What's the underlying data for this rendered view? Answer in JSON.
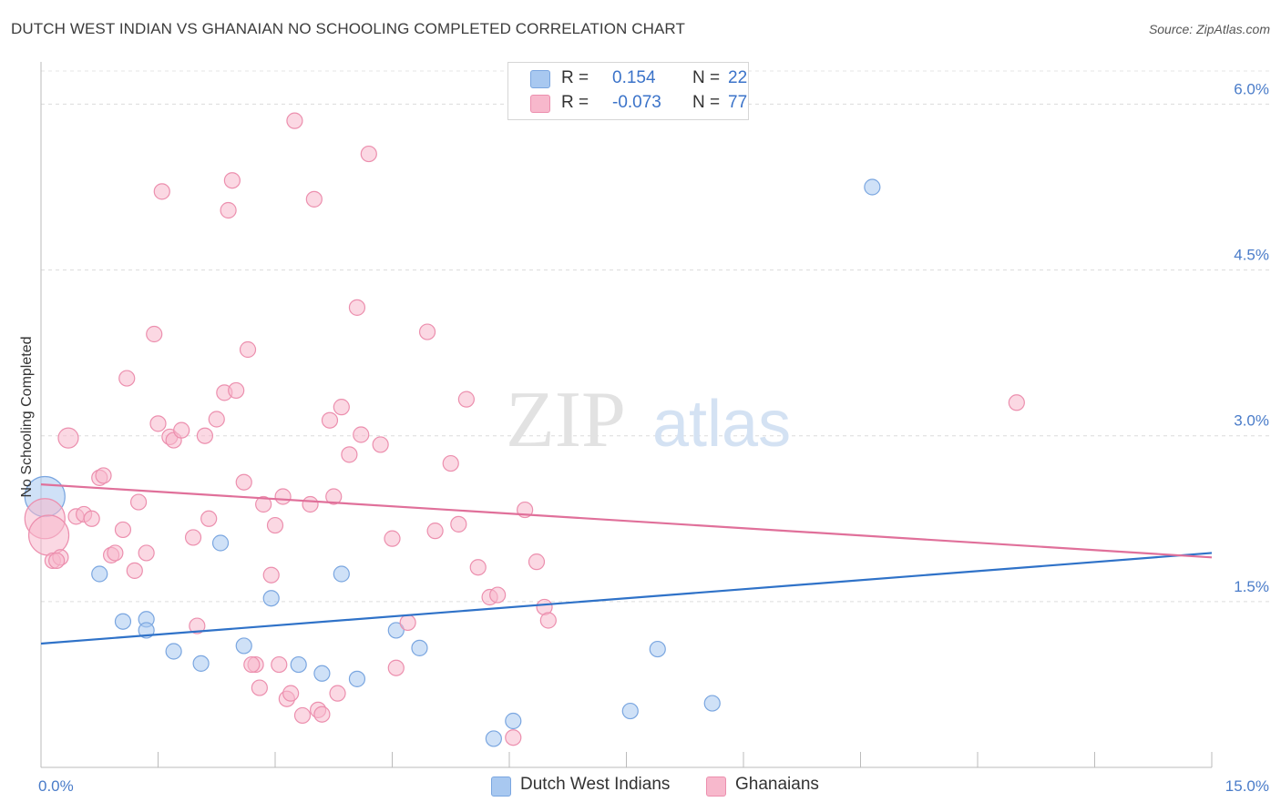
{
  "title": "DUTCH WEST INDIAN VS GHANAIAN NO SCHOOLING COMPLETED CORRELATION CHART",
  "source": "Source: ZipAtlas.com",
  "watermark": {
    "zip": "ZIP",
    "atlas": "atlas"
  },
  "legend": {
    "rows": [
      {
        "r_label": "R =",
        "r_value": "0.154",
        "n_label": "N =",
        "n_value": "22",
        "color": "#a8c8f0",
        "border": "#7aa6e0"
      },
      {
        "r_label": "R =",
        "r_value": "-0.073",
        "n_label": "N =",
        "n_value": "77",
        "color": "#f7b8cc",
        "border": "#ec8fae"
      }
    ]
  },
  "bottom_legend": [
    {
      "name": "Dutch West Indians",
      "color": "#a8c8f0",
      "border": "#7aa6e0"
    },
    {
      "name": "Ghanaians",
      "color": "#f7b8cc",
      "border": "#ec8fae"
    }
  ],
  "chart_data": {
    "type": "scatter",
    "title": "DUTCH WEST INDIAN VS GHANAIAN NO SCHOOLING COMPLETED CORRELATION CHART",
    "xlabel": "",
    "ylabel": "No Schooling Completed",
    "xlim": [
      0,
      15
    ],
    "ylim": [
      0,
      6.3
    ],
    "x_tick_labels": [
      {
        "value": 0,
        "label": "0.0%"
      },
      {
        "value": 15,
        "label": "15.0%"
      }
    ],
    "y_tick_labels": [
      {
        "value": 1.5,
        "label": "1.5%"
      },
      {
        "value": 3.0,
        "label": "3.0%"
      },
      {
        "value": 4.5,
        "label": "4.5%"
      },
      {
        "value": 6.0,
        "label": "6.0%"
      }
    ],
    "grid": "horizontal dashed",
    "legend_position": "top-center",
    "series": [
      {
        "name": "Dutch West Indians",
        "color": "#a8c8f0",
        "stroke": "#7aa6e0",
        "line_color": "#2f72c8",
        "trend": {
          "x": [
            0,
            15
          ],
          "y": [
            1.12,
            1.94
          ]
        },
        "points": [
          {
            "x": 0.05,
            "y": 2.45,
            "size": "large"
          },
          {
            "x": 0.75,
            "y": 1.75
          },
          {
            "x": 1.05,
            "y": 1.32
          },
          {
            "x": 1.35,
            "y": 1.34
          },
          {
            "x": 1.35,
            "y": 1.24
          },
          {
            "x": 1.7,
            "y": 1.05
          },
          {
            "x": 2.05,
            "y": 0.94
          },
          {
            "x": 2.3,
            "y": 2.03
          },
          {
            "x": 2.6,
            "y": 1.1
          },
          {
            "x": 2.95,
            "y": 1.53
          },
          {
            "x": 3.3,
            "y": 0.93
          },
          {
            "x": 3.6,
            "y": 0.85
          },
          {
            "x": 3.85,
            "y": 1.75
          },
          {
            "x": 4.05,
            "y": 0.8
          },
          {
            "x": 4.55,
            "y": 1.24
          },
          {
            "x": 4.85,
            "y": 1.08
          },
          {
            "x": 5.8,
            "y": 0.26
          },
          {
            "x": 6.05,
            "y": 0.42
          },
          {
            "x": 7.55,
            "y": 0.51
          },
          {
            "x": 7.9,
            "y": 1.07
          },
          {
            "x": 8.6,
            "y": 0.58
          },
          {
            "x": 10.65,
            "y": 5.25
          }
        ]
      },
      {
        "name": "Ghanaians",
        "color": "#f7b8cc",
        "stroke": "#ec8fae",
        "line_color": "#e0709a",
        "trend": {
          "x": [
            0,
            15
          ],
          "y": [
            2.56,
            1.9
          ]
        },
        "points": [
          {
            "x": 0.05,
            "y": 2.25,
            "size": "large"
          },
          {
            "x": 0.1,
            "y": 2.1,
            "size": "large"
          },
          {
            "x": 0.15,
            "y": 1.87
          },
          {
            "x": 0.25,
            "y": 1.9
          },
          {
            "x": 0.35,
            "y": 2.98,
            "size": "medium"
          },
          {
            "x": 0.45,
            "y": 2.27
          },
          {
            "x": 0.55,
            "y": 2.29
          },
          {
            "x": 0.65,
            "y": 2.25
          },
          {
            "x": 0.75,
            "y": 2.62
          },
          {
            "x": 0.8,
            "y": 2.64
          },
          {
            "x": 0.9,
            "y": 1.92
          },
          {
            "x": 0.95,
            "y": 1.94
          },
          {
            "x": 1.05,
            "y": 2.15
          },
          {
            "x": 1.1,
            "y": 3.52
          },
          {
            "x": 1.2,
            "y": 1.78
          },
          {
            "x": 1.25,
            "y": 2.4
          },
          {
            "x": 1.35,
            "y": 1.94
          },
          {
            "x": 1.45,
            "y": 3.92
          },
          {
            "x": 1.5,
            "y": 3.11
          },
          {
            "x": 1.55,
            "y": 5.21
          },
          {
            "x": 1.65,
            "y": 2.99
          },
          {
            "x": 1.7,
            "y": 2.96
          },
          {
            "x": 1.8,
            "y": 3.05
          },
          {
            "x": 1.95,
            "y": 2.08
          },
          {
            "x": 2.0,
            "y": 1.28
          },
          {
            "x": 2.1,
            "y": 3.0
          },
          {
            "x": 2.15,
            "y": 2.25
          },
          {
            "x": 2.25,
            "y": 3.15
          },
          {
            "x": 2.35,
            "y": 3.39
          },
          {
            "x": 2.4,
            "y": 5.04
          },
          {
            "x": 2.45,
            "y": 5.31
          },
          {
            "x": 2.5,
            "y": 3.41
          },
          {
            "x": 2.6,
            "y": 2.58
          },
          {
            "x": 2.65,
            "y": 3.78
          },
          {
            "x": 2.75,
            "y": 0.93
          },
          {
            "x": 2.8,
            "y": 0.72
          },
          {
            "x": 2.85,
            "y": 2.38
          },
          {
            "x": 2.95,
            "y": 1.74
          },
          {
            "x": 3.0,
            "y": 2.19
          },
          {
            "x": 3.05,
            "y": 0.93
          },
          {
            "x": 3.1,
            "y": 2.45
          },
          {
            "x": 3.15,
            "y": 0.62
          },
          {
            "x": 3.2,
            "y": 0.67
          },
          {
            "x": 3.25,
            "y": 5.85
          },
          {
            "x": 3.35,
            "y": 0.47
          },
          {
            "x": 3.45,
            "y": 2.38
          },
          {
            "x": 3.5,
            "y": 5.14
          },
          {
            "x": 3.55,
            "y": 0.52
          },
          {
            "x": 3.6,
            "y": 0.48
          },
          {
            "x": 3.7,
            "y": 3.14
          },
          {
            "x": 3.75,
            "y": 2.45
          },
          {
            "x": 3.8,
            "y": 0.67
          },
          {
            "x": 3.85,
            "y": 3.26
          },
          {
            "x": 3.95,
            "y": 2.83
          },
          {
            "x": 4.05,
            "y": 4.16
          },
          {
            "x": 4.1,
            "y": 3.01
          },
          {
            "x": 4.2,
            "y": 5.55
          },
          {
            "x": 4.35,
            "y": 2.92
          },
          {
            "x": 4.5,
            "y": 2.07
          },
          {
            "x": 4.55,
            "y": 0.9
          },
          {
            "x": 4.7,
            "y": 1.31
          },
          {
            "x": 4.95,
            "y": 3.94
          },
          {
            "x": 5.05,
            "y": 2.14
          },
          {
            "x": 5.25,
            "y": 2.75
          },
          {
            "x": 5.35,
            "y": 2.2
          },
          {
            "x": 5.45,
            "y": 3.33
          },
          {
            "x": 5.6,
            "y": 1.81
          },
          {
            "x": 5.75,
            "y": 1.54
          },
          {
            "x": 5.85,
            "y": 1.56
          },
          {
            "x": 6.05,
            "y": 0.27
          },
          {
            "x": 6.2,
            "y": 2.33
          },
          {
            "x": 6.35,
            "y": 1.86
          },
          {
            "x": 6.45,
            "y": 1.45
          },
          {
            "x": 6.5,
            "y": 1.33
          },
          {
            "x": 12.5,
            "y": 3.3
          },
          {
            "x": 0.2,
            "y": 1.87
          },
          {
            "x": 2.7,
            "y": 0.93
          }
        ]
      }
    ]
  }
}
